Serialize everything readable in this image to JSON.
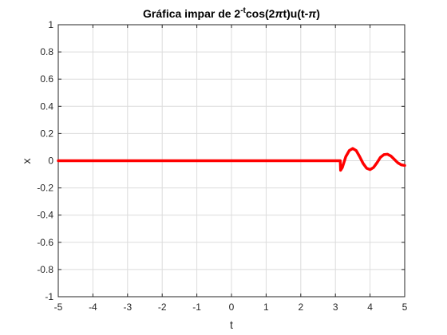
{
  "chart_data": {
    "type": "line",
    "title": {
      "part1": "Gráfica impar de 2",
      "superscript": "-t",
      "part2": "cos(2",
      "pi": "π",
      "part3": "t)u(t-",
      "pi2": "π",
      "part4": ")"
    },
    "xlabel": "t",
    "ylabel": "x",
    "xlim": [
      -5,
      5
    ],
    "ylim": [
      -1,
      1
    ],
    "x_ticks": [
      -5,
      -4,
      -3,
      -2,
      -1,
      0,
      1,
      2,
      3,
      4,
      5
    ],
    "y_ticks": [
      -1,
      -0.8,
      -0.6,
      -0.4,
      -0.2,
      0,
      0.2,
      0.4,
      0.6,
      0.8,
      1
    ],
    "grid": true,
    "series": [
      {
        "color": "#ff0000",
        "x": [
          -5,
          -4,
          -3,
          -2,
          -1,
          0,
          1,
          2,
          3,
          3.14,
          3.15,
          3.2,
          3.3,
          3.4,
          3.5,
          3.6,
          3.7,
          3.8,
          3.9,
          4.0,
          4.1,
          4.2,
          4.3,
          4.4,
          4.5,
          4.6,
          4.7,
          4.8,
          4.9,
          5.0
        ],
        "y": [
          0,
          0,
          0,
          0,
          0,
          0,
          0,
          0,
          0,
          0,
          -0.07,
          -0.05,
          0.03,
          0.075,
          0.09,
          0.075,
          0.03,
          -0.02,
          -0.055,
          -0.065,
          -0.05,
          -0.015,
          0.025,
          0.045,
          0.048,
          0.035,
          0.01,
          -0.015,
          -0.03,
          -0.035
        ]
      }
    ]
  }
}
